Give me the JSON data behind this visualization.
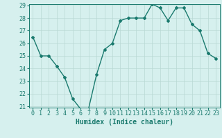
{
  "x": [
    0,
    1,
    2,
    3,
    4,
    5,
    6,
    7,
    8,
    9,
    10,
    11,
    12,
    13,
    14,
    15,
    16,
    17,
    18,
    19,
    20,
    21,
    22,
    23
  ],
  "y": [
    26.5,
    25.0,
    25.0,
    24.2,
    23.3,
    21.6,
    20.8,
    20.8,
    23.5,
    25.5,
    26.0,
    27.8,
    28.0,
    28.0,
    28.0,
    29.1,
    28.8,
    27.8,
    28.8,
    28.8,
    27.5,
    27.0,
    25.2,
    24.8
  ],
  "line_color": "#1a7a6e",
  "marker": "D",
  "marker_size": 2,
  "bg_color": "#d6f0ee",
  "grid_color": "#b8d8d4",
  "tick_color": "#1a7a6e",
  "xlabel": "Humidex (Indice chaleur)",
  "ylim": [
    21,
    29
  ],
  "xlim": [
    -0.5,
    23.5
  ],
  "yticks": [
    21,
    22,
    23,
    24,
    25,
    26,
    27,
    28,
    29
  ],
  "xticks": [
    0,
    1,
    2,
    3,
    4,
    5,
    6,
    7,
    8,
    9,
    10,
    11,
    12,
    13,
    14,
    15,
    16,
    17,
    18,
    19,
    20,
    21,
    22,
    23
  ],
  "xlabel_fontsize": 7,
  "tick_fontsize": 6,
  "line_width": 1.0
}
